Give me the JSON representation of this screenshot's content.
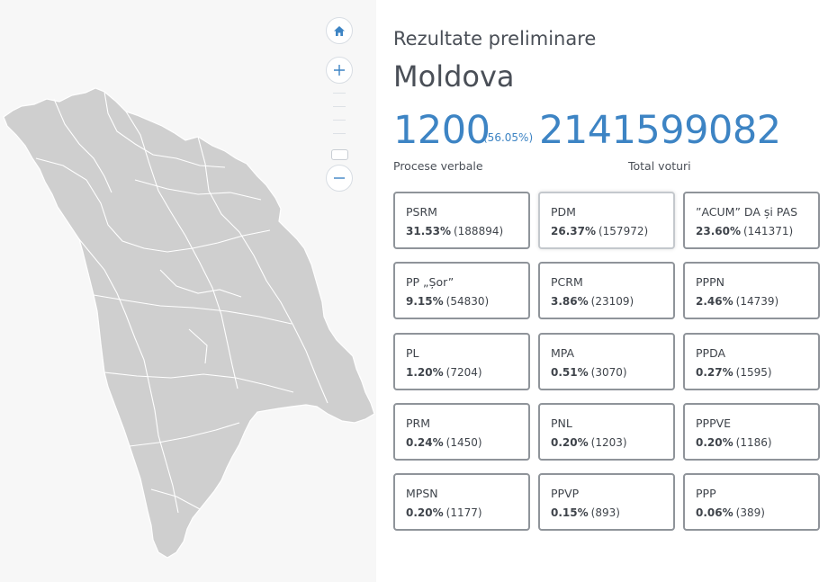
{
  "header": {
    "subtitle": "Rezultate preliminare",
    "title": "Moldova"
  },
  "summary": {
    "protocols": "1200",
    "protocols_pct": "(56.05%)",
    "total_votes": "2141599082",
    "protocols_label": "Procese verbale",
    "total_label": "Total voturi"
  },
  "map": {
    "region_color": "#cfcfcf",
    "controls": {
      "home_icon": "home-icon",
      "zoom_in_icon": "plus-icon",
      "zoom_out_icon": "minus-icon"
    }
  },
  "accent_color": "#3d84c4",
  "parties": [
    {
      "name": "PSRM",
      "pct": "31.53%",
      "votes": "(188894)"
    },
    {
      "name": "PDM",
      "pct": "26.37%",
      "votes": "(157972)"
    },
    {
      "name": "”ACUM” DA și PAS",
      "pct": "23.60%",
      "votes": "(141371)"
    },
    {
      "name": "PP „Șor”",
      "pct": "9.15%",
      "votes": "(54830)"
    },
    {
      "name": "PCRM",
      "pct": "3.86%",
      "votes": "(23109)"
    },
    {
      "name": "PPPN",
      "pct": "2.46%",
      "votes": "(14739)"
    },
    {
      "name": "PL",
      "pct": "1.20%",
      "votes": "(7204)"
    },
    {
      "name": "MPA",
      "pct": "0.51%",
      "votes": "(3070)"
    },
    {
      "name": "PPDA",
      "pct": "0.27%",
      "votes": "(1595)"
    },
    {
      "name": "PRM",
      "pct": "0.24%",
      "votes": "(1450)"
    },
    {
      "name": "PNL",
      "pct": "0.20%",
      "votes": "(1203)"
    },
    {
      "name": "PPPVE",
      "pct": "0.20%",
      "votes": "(1186)"
    },
    {
      "name": "MPSN",
      "pct": "0.20%",
      "votes": "(1177)"
    },
    {
      "name": "PPVP",
      "pct": "0.15%",
      "votes": "(893)"
    },
    {
      "name": "PPP",
      "pct": "0.06%",
      "votes": "(389)"
    }
  ]
}
